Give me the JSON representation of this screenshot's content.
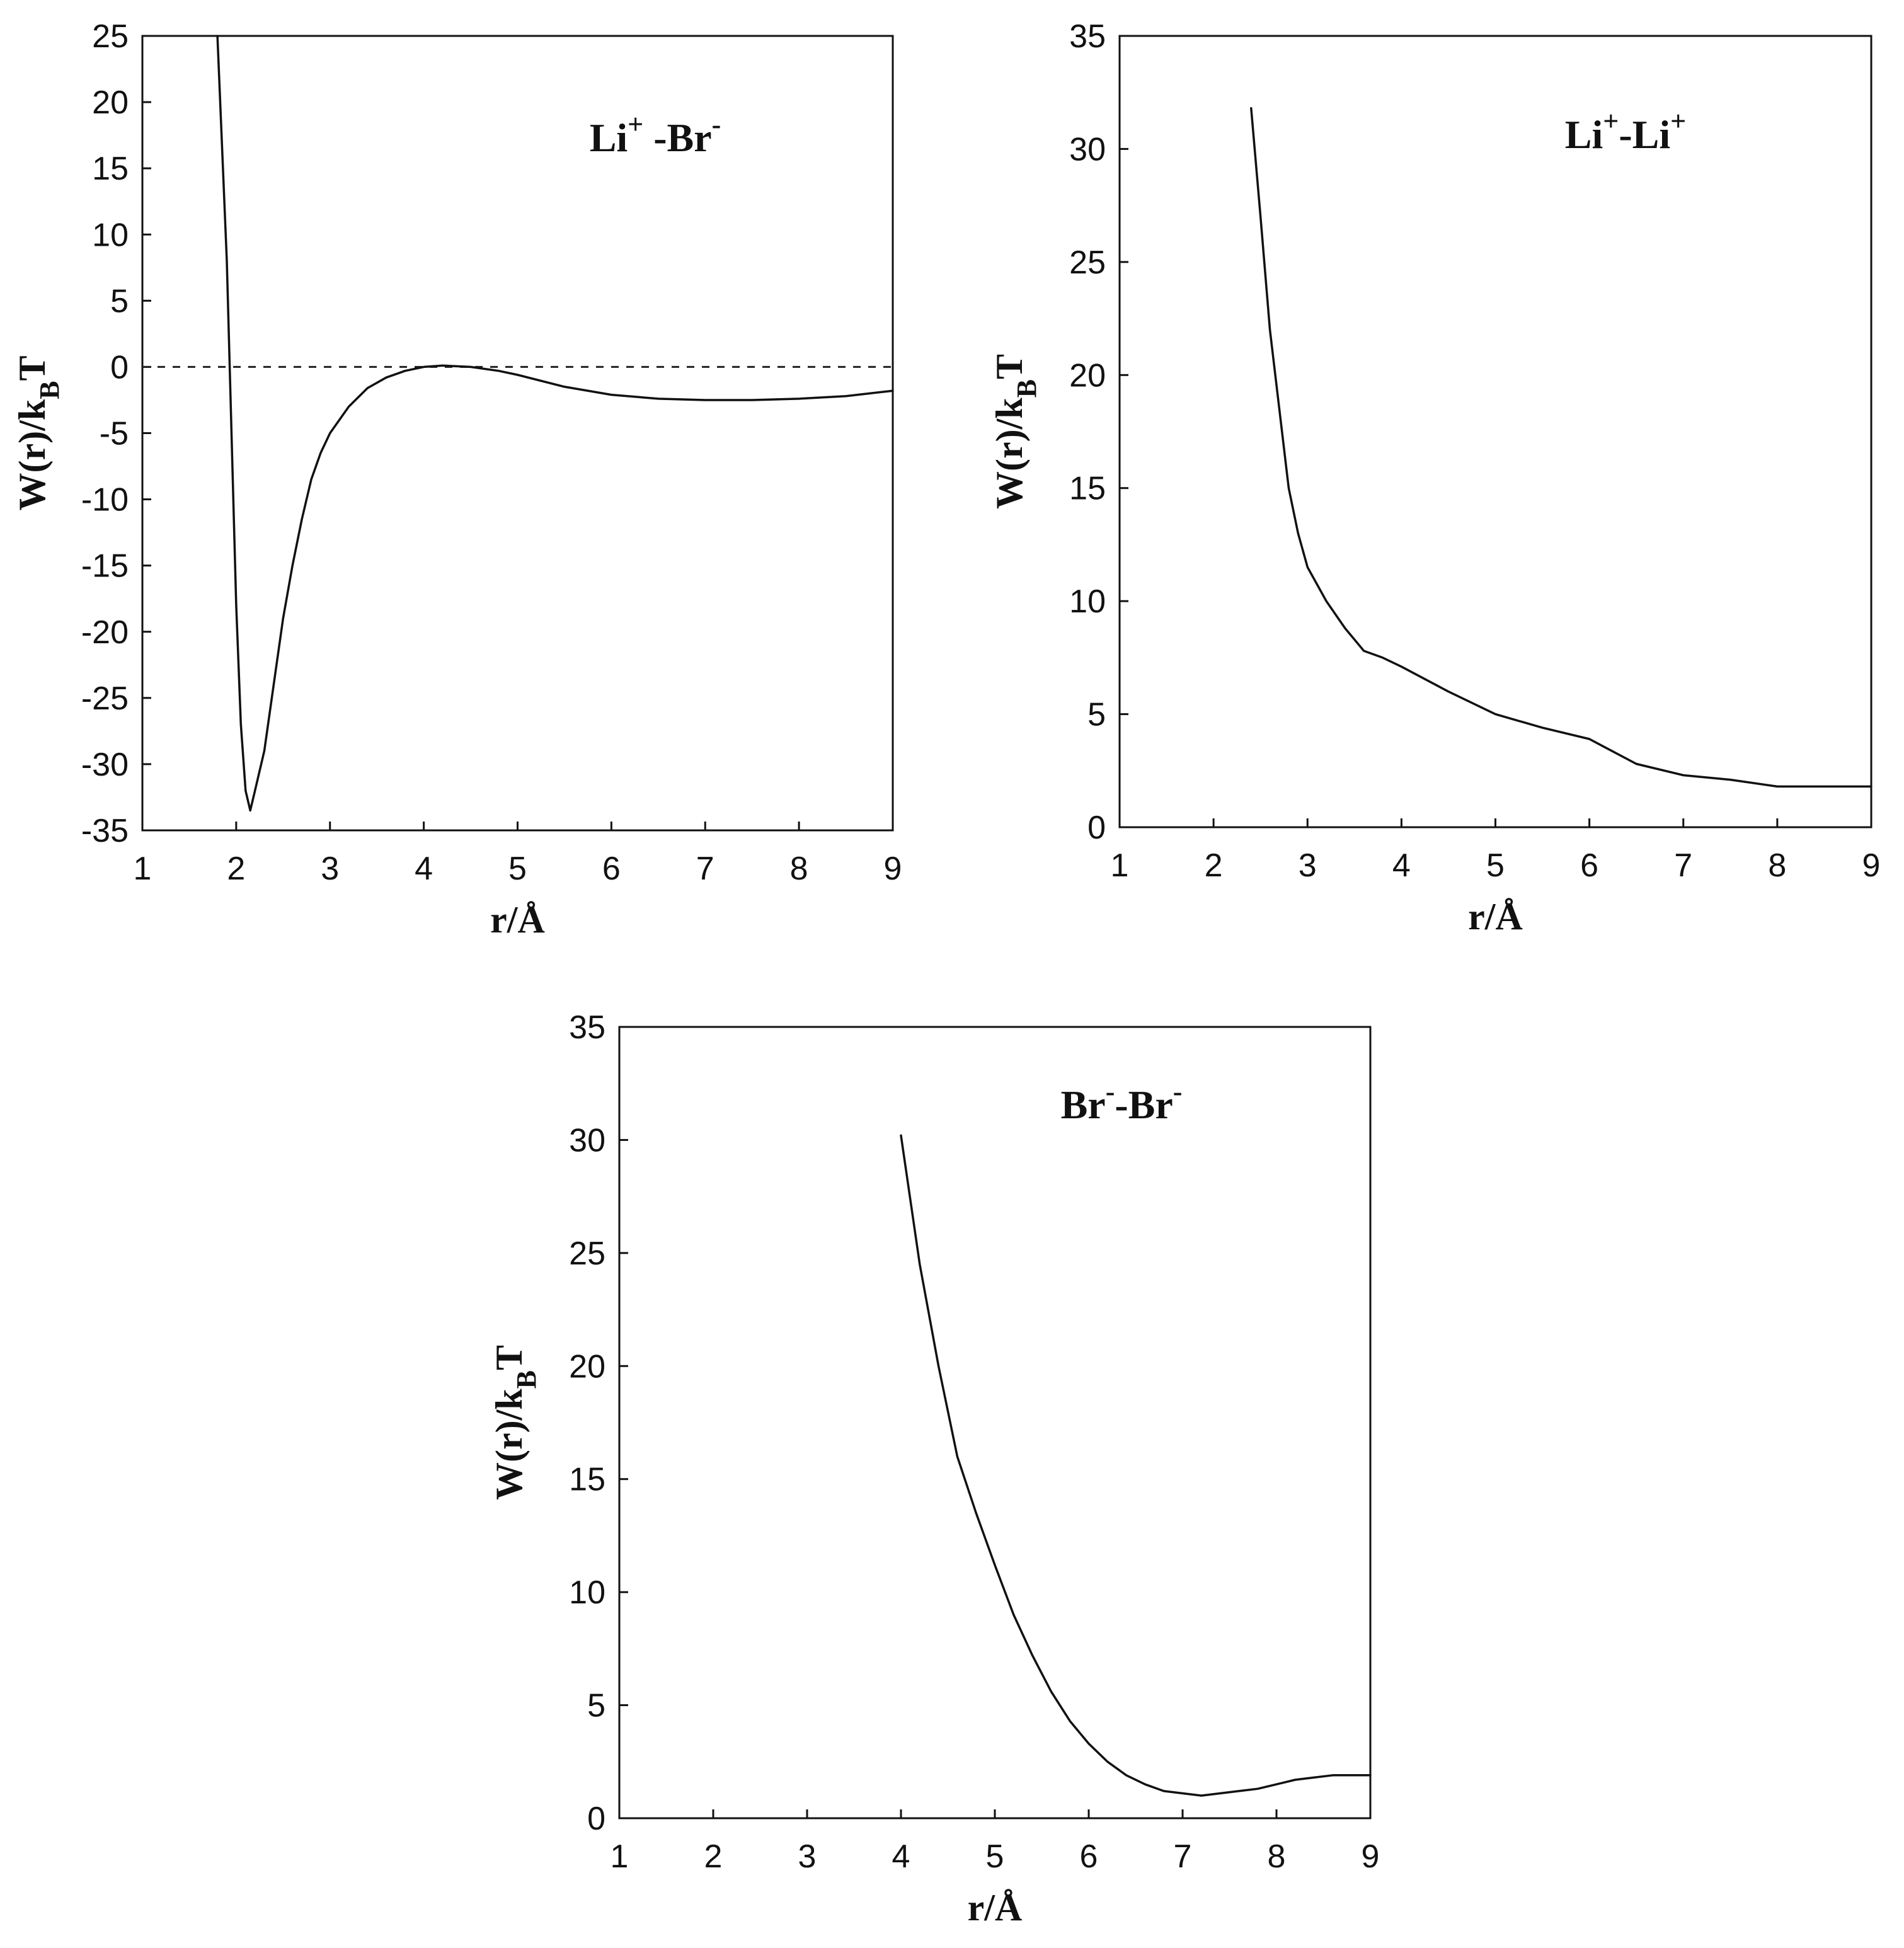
{
  "chart_data": [
    {
      "type": "line",
      "annotation": {
        "base1": "Li",
        "sup1": "+",
        "sep": " -",
        "base2": "Br",
        "sup2": "-"
      },
      "xlabel": "r/Å",
      "ylabel": {
        "main": "W(r)/k",
        "sub": "B",
        "tail": "T"
      },
      "xlim": [
        1,
        9
      ],
      "ylim": [
        -35,
        25
      ],
      "xticks": [
        1,
        2,
        3,
        4,
        5,
        6,
        7,
        8,
        9
      ],
      "yticks": [
        25,
        20,
        15,
        10,
        5,
        0,
        -5,
        -10,
        -15,
        -20,
        -25,
        -30,
        -35
      ],
      "reference_line": {
        "y": 0,
        "style": "dashed"
      },
      "series": [
        {
          "x": [
            1.8,
            1.9,
            2.0,
            2.05,
            2.1,
            2.15,
            2.2,
            2.3,
            2.4,
            2.5,
            2.6,
            2.7,
            2.8,
            2.9,
            3.0,
            3.2,
            3.4,
            3.6,
            3.8,
            4.0,
            4.2,
            4.5,
            4.8,
            5.0,
            5.5,
            6.0,
            6.5,
            7.0,
            7.5,
            8.0,
            8.5,
            9.0
          ],
          "y": [
            25,
            8,
            -18,
            -27,
            -32,
            -33.5,
            -32,
            -29,
            -24,
            -19,
            -15,
            -11.5,
            -8.5,
            -6.5,
            -5.0,
            -3.0,
            -1.6,
            -0.8,
            -0.3,
            0.0,
            0.1,
            0.0,
            -0.3,
            -0.6,
            -1.5,
            -2.1,
            -2.4,
            -2.5,
            -2.5,
            -2.4,
            -2.2,
            -1.8
          ]
        }
      ]
    },
    {
      "type": "line",
      "annotation": {
        "base1": "Li",
        "sup1": "+",
        "sep": "-",
        "base2": "Li",
        "sup2": "+"
      },
      "xlabel": "r/Å",
      "ylabel": {
        "main": "W(r)/k",
        "sub": "B",
        "tail": "T"
      },
      "xlim": [
        1,
        9
      ],
      "ylim": [
        0,
        35
      ],
      "xticks": [
        1,
        2,
        3,
        4,
        5,
        6,
        7,
        8,
        9
      ],
      "yticks": [
        35,
        30,
        25,
        20,
        15,
        10,
        5,
        0
      ],
      "series": [
        {
          "x": [
            2.4,
            2.5,
            2.6,
            2.7,
            2.8,
            2.9,
            3.0,
            3.2,
            3.4,
            3.6,
            3.8,
            4.0,
            4.5,
            5.0,
            5.5,
            6.0,
            6.5,
            7.0,
            7.5,
            8.0,
            8.5,
            9.0
          ],
          "y": [
            31.8,
            27.0,
            22.0,
            18.5,
            15.0,
            13.0,
            11.5,
            10.0,
            8.8,
            7.8,
            7.5,
            7.1,
            6.0,
            5.0,
            4.4,
            3.9,
            2.8,
            2.3,
            2.1,
            1.8,
            1.8,
            1.8
          ]
        }
      ]
    },
    {
      "type": "line",
      "annotation": {
        "base1": "Br",
        "sup1": "-",
        "sep": "-",
        "base2": "Br",
        "sup2": "-"
      },
      "xlabel": "r/Å",
      "ylabel": {
        "main": "W(r)/k",
        "sub": "B",
        "tail": "T"
      },
      "xlim": [
        1,
        9
      ],
      "ylim": [
        0,
        35
      ],
      "xticks": [
        1,
        2,
        3,
        4,
        5,
        6,
        7,
        8,
        9
      ],
      "yticks": [
        35,
        30,
        25,
        20,
        15,
        10,
        5,
        0
      ],
      "series": [
        {
          "x": [
            4.0,
            4.2,
            4.4,
            4.6,
            4.8,
            5.0,
            5.2,
            5.4,
            5.6,
            5.8,
            6.0,
            6.2,
            6.4,
            6.6,
            6.8,
            7.0,
            7.2,
            7.4,
            7.6,
            7.8,
            8.0,
            8.2,
            8.4,
            8.6,
            8.8,
            9.0
          ],
          "y": [
            30.2,
            24.5,
            20.0,
            16.0,
            13.5,
            11.2,
            9.0,
            7.2,
            5.6,
            4.3,
            3.3,
            2.5,
            1.9,
            1.5,
            1.2,
            1.1,
            1.0,
            1.1,
            1.2,
            1.3,
            1.5,
            1.7,
            1.8,
            1.9,
            1.9,
            1.9
          ]
        }
      ]
    }
  ]
}
